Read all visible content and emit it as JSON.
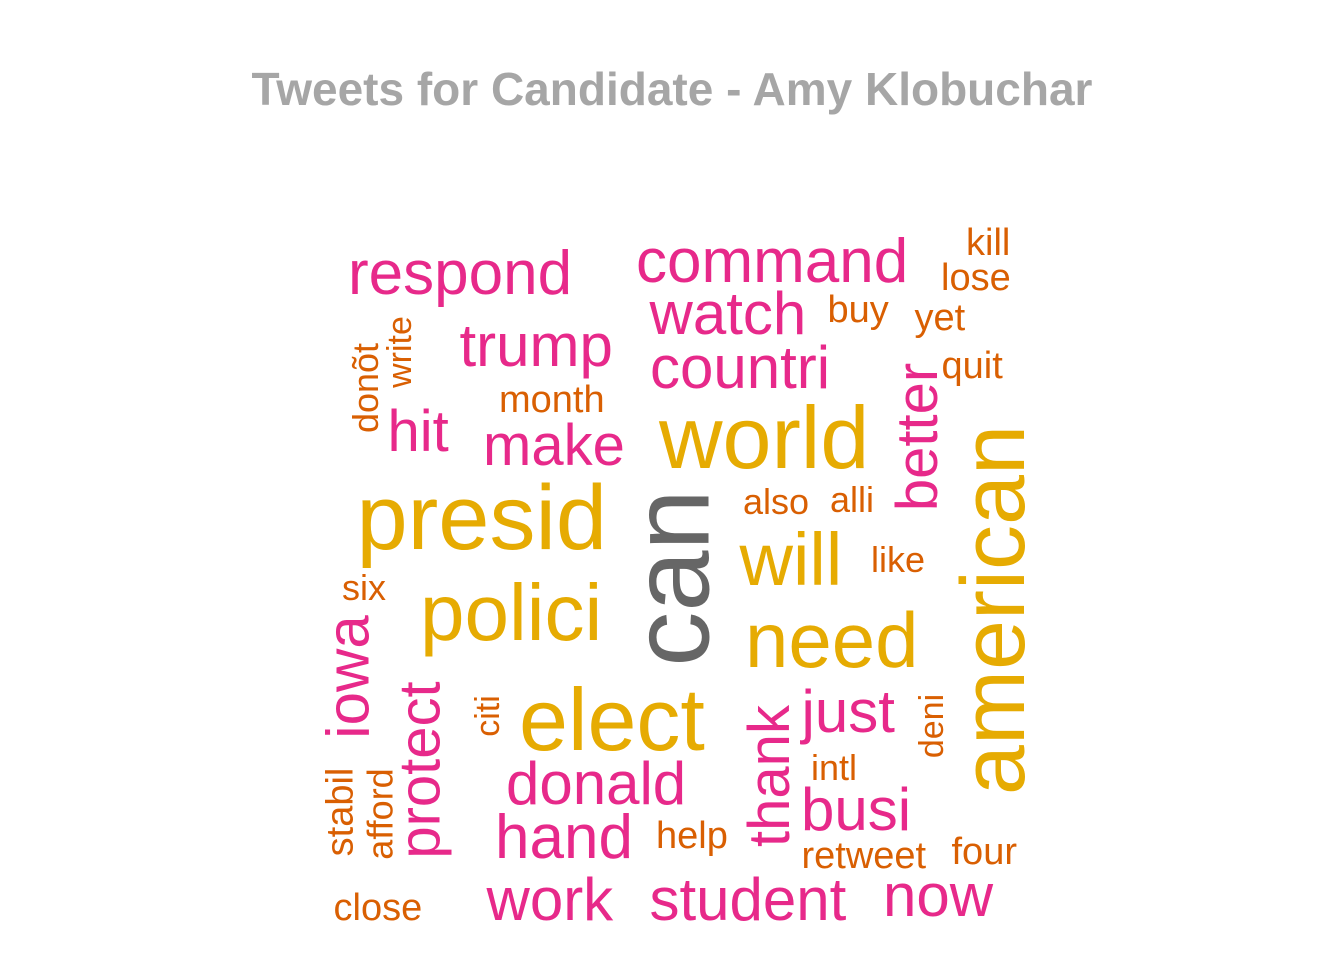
{
  "title": "Tweets for Candidate - Amy Klobuchar",
  "colors": {
    "magenta": "#e7298a",
    "gold": "#e6ab02",
    "orange": "#d95f02",
    "gray": "#666666",
    "title": "#a6a6a6"
  },
  "words": [
    {
      "text": "can",
      "color": "gray",
      "rank": 1
    },
    {
      "text": "presid",
      "color": "gold",
      "rank": 2
    },
    {
      "text": "world",
      "color": "gold",
      "rank": 2
    },
    {
      "text": "american",
      "color": "gold",
      "rank": 2
    },
    {
      "text": "elect",
      "color": "gold",
      "rank": 2
    },
    {
      "text": "polici",
      "color": "gold",
      "rank": 2
    },
    {
      "text": "need",
      "color": "gold",
      "rank": 2
    },
    {
      "text": "will",
      "color": "gold",
      "rank": 2
    },
    {
      "text": "respond",
      "color": "magenta",
      "rank": 3
    },
    {
      "text": "command",
      "color": "magenta",
      "rank": 3
    },
    {
      "text": "watch",
      "color": "magenta",
      "rank": 3
    },
    {
      "text": "trump",
      "color": "magenta",
      "rank": 3
    },
    {
      "text": "countri",
      "color": "magenta",
      "rank": 3
    },
    {
      "text": "hit",
      "color": "magenta",
      "rank": 3
    },
    {
      "text": "make",
      "color": "magenta",
      "rank": 3
    },
    {
      "text": "better",
      "color": "magenta",
      "rank": 3
    },
    {
      "text": "iowa",
      "color": "magenta",
      "rank": 3
    },
    {
      "text": "protect",
      "color": "magenta",
      "rank": 3
    },
    {
      "text": "donald",
      "color": "magenta",
      "rank": 3
    },
    {
      "text": "hand",
      "color": "magenta",
      "rank": 3
    },
    {
      "text": "work",
      "color": "magenta",
      "rank": 3
    },
    {
      "text": "student",
      "color": "magenta",
      "rank": 3
    },
    {
      "text": "now",
      "color": "magenta",
      "rank": 3
    },
    {
      "text": "thank",
      "color": "magenta",
      "rank": 3
    },
    {
      "text": "just",
      "color": "magenta",
      "rank": 3
    },
    {
      "text": "busi",
      "color": "magenta",
      "rank": 3
    },
    {
      "text": "kill",
      "color": "orange",
      "rank": 4
    },
    {
      "text": "lose",
      "color": "orange",
      "rank": 4
    },
    {
      "text": "buy",
      "color": "orange",
      "rank": 4
    },
    {
      "text": "yet",
      "color": "orange",
      "rank": 4
    },
    {
      "text": "quit",
      "color": "orange",
      "rank": 4
    },
    {
      "text": "write",
      "color": "orange",
      "rank": 4
    },
    {
      "text": "donõt",
      "color": "orange",
      "rank": 4
    },
    {
      "text": "month",
      "color": "orange",
      "rank": 4
    },
    {
      "text": "also",
      "color": "orange",
      "rank": 4
    },
    {
      "text": "alli",
      "color": "orange",
      "rank": 4
    },
    {
      "text": "like",
      "color": "orange",
      "rank": 4
    },
    {
      "text": "six",
      "color": "orange",
      "rank": 4
    },
    {
      "text": "citi",
      "color": "orange",
      "rank": 4
    },
    {
      "text": "deni",
      "color": "orange",
      "rank": 4
    },
    {
      "text": "intl",
      "color": "orange",
      "rank": 4
    },
    {
      "text": "stabil",
      "color": "orange",
      "rank": 4
    },
    {
      "text": "afford",
      "color": "orange",
      "rank": 4
    },
    {
      "text": "help",
      "color": "orange",
      "rank": 4
    },
    {
      "text": "retweet",
      "color": "orange",
      "rank": 4
    },
    {
      "text": "four",
      "color": "orange",
      "rank": 4
    },
    {
      "text": "close",
      "color": "orange",
      "rank": 4
    }
  ]
}
